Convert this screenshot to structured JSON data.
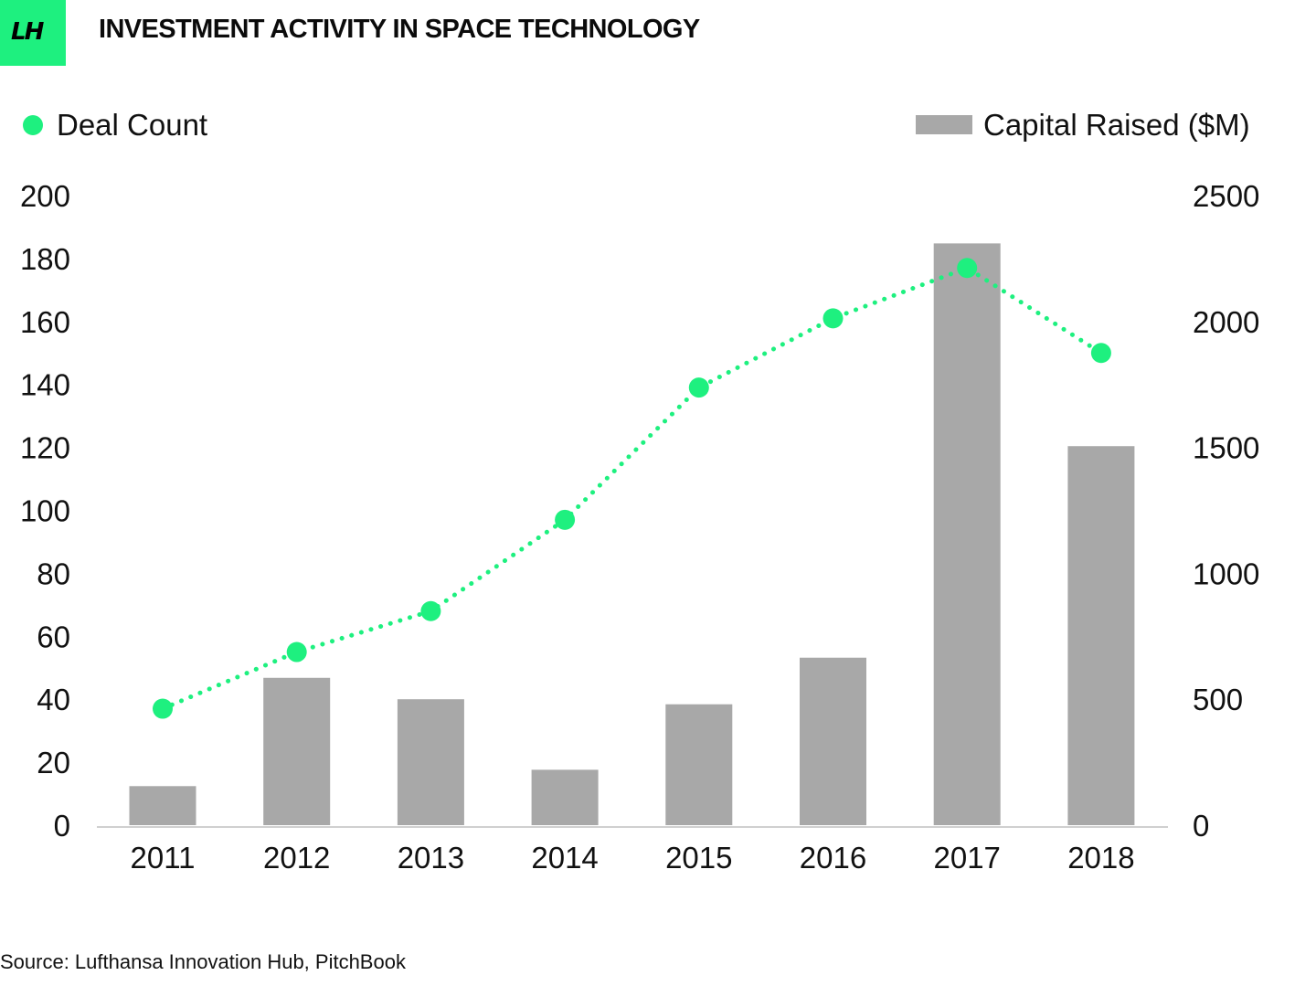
{
  "header": {
    "logo_text": "LH",
    "title": "INVESTMENT ACTIVITY IN SPACE TECHNOLOGY"
  },
  "footer": {
    "source": "Source: Lufthansa Innovation Hub, PitchBook"
  },
  "colors": {
    "accent": "#1ef07f",
    "bar": "#a8a8a8",
    "axis": "#d0d0d0"
  },
  "chart_data": {
    "type": "bar",
    "title": "INVESTMENT ACTIVITY IN SPACE TECHNOLOGY",
    "categories": [
      "2011",
      "2012",
      "2013",
      "2014",
      "2015",
      "2016",
      "2017",
      "2018"
    ],
    "series": [
      {
        "name": "Capital Raised ($M)",
        "type": "bar",
        "axis": "right",
        "values": [
          155,
          585,
          500,
          220,
          480,
          665,
          2310,
          1505
        ]
      },
      {
        "name": "Deal Count",
        "type": "line",
        "style": "dotted-with-markers",
        "axis": "left",
        "values": [
          37,
          55,
          68,
          97,
          139,
          161,
          177,
          150
        ]
      }
    ],
    "y_left": {
      "min": 0,
      "max": 200,
      "ticks": [
        0,
        20,
        40,
        60,
        80,
        100,
        120,
        140,
        160,
        180,
        200
      ]
    },
    "y_right": {
      "min": 0,
      "max": 2500,
      "ticks": [
        0,
        500,
        1000,
        1500,
        2000,
        2500
      ]
    },
    "legend": {
      "left": "Deal Count",
      "right": "Capital Raised ($M)",
      "placement": "top"
    },
    "grid": false
  }
}
